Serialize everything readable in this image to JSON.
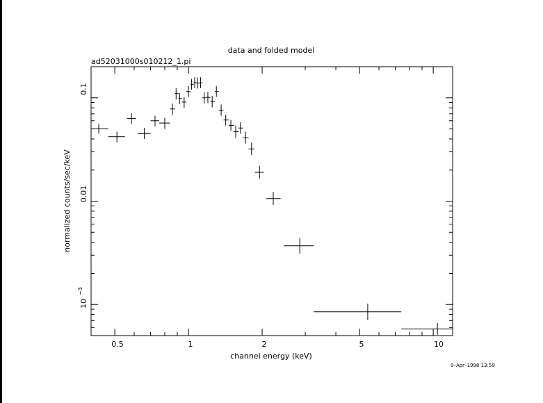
{
  "chart_data": {
    "type": "scatter",
    "title": "data and folded model",
    "subtitle": "ad52031000s010212_1.pi",
    "xlabel": "channel energy (keV)",
    "ylabel": "normalized counts/sec/keV",
    "xscale": "log",
    "yscale": "log",
    "xlim": [
      0.4,
      12
    ],
    "ylim": [
      0.0005,
      0.2
    ],
    "grid": false,
    "x_ticks": [
      "0.5",
      "1",
      "2",
      "5",
      "10"
    ],
    "y_ticks": [
      "0.01",
      "0.1"
    ],
    "y_tick_1e-3": {
      "base": "10",
      "exponent": "−3"
    },
    "timestamp": "9–Apr–1998 13:59",
    "series": [
      {
        "points": [
          {
            "x": 0.43,
            "xlo": 0.4,
            "xhi": 0.47,
            "y": 0.05,
            "ylo": 0.045,
            "yhi": 0.056
          },
          {
            "x": 0.51,
            "xlo": 0.47,
            "xhi": 0.55,
            "y": 0.042,
            "ylo": 0.037,
            "yhi": 0.047
          },
          {
            "x": 0.585,
            "xlo": 0.56,
            "xhi": 0.61,
            "y": 0.063,
            "ylo": 0.056,
            "yhi": 0.071
          },
          {
            "x": 0.66,
            "xlo": 0.62,
            "xhi": 0.7,
            "y": 0.045,
            "ylo": 0.04,
            "yhi": 0.051
          },
          {
            "x": 0.73,
            "xlo": 0.7,
            "xhi": 0.76,
            "y": 0.06,
            "ylo": 0.053,
            "yhi": 0.067
          },
          {
            "x": 0.8,
            "xlo": 0.76,
            "xhi": 0.84,
            "y": 0.057,
            "ylo": 0.05,
            "yhi": 0.064
          },
          {
            "x": 0.86,
            "xlo": 0.84,
            "xhi": 0.88,
            "y": 0.078,
            "ylo": 0.068,
            "yhi": 0.088
          },
          {
            "x": 0.89,
            "xlo": 0.88,
            "xhi": 0.91,
            "y": 0.11,
            "ylo": 0.096,
            "yhi": 0.124
          },
          {
            "x": 0.92,
            "xlo": 0.91,
            "xhi": 0.94,
            "y": 0.099,
            "ylo": 0.087,
            "yhi": 0.111
          },
          {
            "x": 0.96,
            "xlo": 0.94,
            "xhi": 0.98,
            "y": 0.091,
            "ylo": 0.08,
            "yhi": 0.102
          },
          {
            "x": 1.0,
            "xlo": 0.98,
            "xhi": 1.02,
            "y": 0.115,
            "ylo": 0.102,
            "yhi": 0.13
          },
          {
            "x": 1.03,
            "xlo": 1.02,
            "xhi": 1.05,
            "y": 0.135,
            "ylo": 0.12,
            "yhi": 0.152
          },
          {
            "x": 1.06,
            "xlo": 1.05,
            "xhi": 1.08,
            "y": 0.14,
            "ylo": 0.124,
            "yhi": 0.158
          },
          {
            "x": 1.09,
            "xlo": 1.08,
            "xhi": 1.11,
            "y": 0.139,
            "ylo": 0.123,
            "yhi": 0.157
          },
          {
            "x": 1.12,
            "xlo": 1.11,
            "xhi": 1.14,
            "y": 0.14,
            "ylo": 0.124,
            "yhi": 0.158
          },
          {
            "x": 1.16,
            "xlo": 1.14,
            "xhi": 1.18,
            "y": 0.1,
            "ylo": 0.088,
            "yhi": 0.113
          },
          {
            "x": 1.2,
            "xlo": 1.18,
            "xhi": 1.23,
            "y": 0.101,
            "ylo": 0.089,
            "yhi": 0.114
          },
          {
            "x": 1.25,
            "xlo": 1.23,
            "xhi": 1.28,
            "y": 0.092,
            "ylo": 0.081,
            "yhi": 0.104
          },
          {
            "x": 1.3,
            "xlo": 1.28,
            "xhi": 1.33,
            "y": 0.115,
            "ylo": 0.102,
            "yhi": 0.13
          },
          {
            "x": 1.36,
            "xlo": 1.33,
            "xhi": 1.39,
            "y": 0.076,
            "ylo": 0.067,
            "yhi": 0.086
          },
          {
            "x": 1.42,
            "xlo": 1.39,
            "xhi": 1.46,
            "y": 0.061,
            "ylo": 0.054,
            "yhi": 0.069
          },
          {
            "x": 1.49,
            "xlo": 1.46,
            "xhi": 1.53,
            "y": 0.054,
            "ylo": 0.048,
            "yhi": 0.061
          },
          {
            "x": 1.56,
            "xlo": 1.53,
            "xhi": 1.6,
            "y": 0.047,
            "ylo": 0.041,
            "yhi": 0.054
          },
          {
            "x": 1.63,
            "xlo": 1.6,
            "xhi": 1.67,
            "y": 0.051,
            "ylo": 0.045,
            "yhi": 0.058
          },
          {
            "x": 1.71,
            "xlo": 1.67,
            "xhi": 1.76,
            "y": 0.041,
            "ylo": 0.036,
            "yhi": 0.047
          },
          {
            "x": 1.81,
            "xlo": 1.76,
            "xhi": 1.86,
            "y": 0.032,
            "ylo": 0.028,
            "yhi": 0.037
          },
          {
            "x": 1.95,
            "xlo": 1.87,
            "xhi": 2.03,
            "y": 0.019,
            "ylo": 0.0165,
            "yhi": 0.022
          },
          {
            "x": 2.22,
            "xlo": 2.08,
            "xhi": 2.38,
            "y": 0.0106,
            "ylo": 0.0092,
            "yhi": 0.0123
          },
          {
            "x": 2.85,
            "xlo": 2.45,
            "xhi": 3.25,
            "y": 0.0037,
            "ylo": 0.0031,
            "yhi": 0.0044
          },
          {
            "x": 5.4,
            "xlo": 3.25,
            "xhi": 7.4,
            "y": 0.00085,
            "ylo": 0.00071,
            "yhi": 0.00102
          },
          {
            "x": 10.4,
            "xlo": 7.4,
            "xhi": 12.0,
            "y": 0.00058,
            "ylo": 0.00051,
            "yhi": 0.00066
          }
        ]
      }
    ]
  }
}
